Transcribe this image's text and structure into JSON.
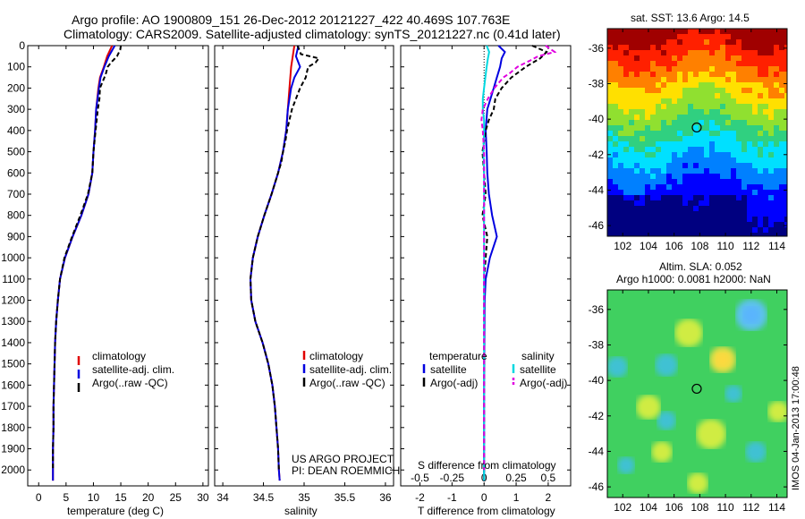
{
  "header": {
    "line1": "Argo profile: AO 1900809_151 26-Dec-2012 20121227_422 40.469S 107.763E",
    "line2": "Climatology: CARS2009. Satellite-adjusted climatology: synTS_20121227.nc (0.41d later)"
  },
  "side_stamp": "IMOS 04-Jan-2013 17:00:48",
  "colors": {
    "clim": "#e00000",
    "sat": "#0000e0",
    "argo": "#000000",
    "sat_s": "#00d8e0",
    "argo_s": "#e000e0"
  },
  "chart_data": [
    {
      "type": "line",
      "xlabel": "temperature (deg C)",
      "xticks": [
        "0",
        "5",
        "10",
        "15",
        "20",
        "25",
        "30"
      ],
      "xlim": [
        -2,
        31
      ],
      "ylim": [
        0,
        2075
      ],
      "yticks": [
        "0",
        "100",
        "200",
        "300",
        "400",
        "500",
        "600",
        "700",
        "800",
        "900",
        "1000",
        "1100",
        "1200",
        "1300",
        "1400",
        "1500",
        "1600",
        "1700",
        "1800",
        "1900",
        "2000"
      ],
      "legend": [
        "climatology",
        "satellite-adj. clim.",
        "Argo(..raw -QC)"
      ],
      "series": [
        {
          "name": "climatology",
          "depth": [
            0,
            50,
            100,
            150,
            200,
            300,
            400,
            500,
            600,
            700,
            800,
            900,
            1000,
            1100,
            1200,
            1300,
            1400,
            1500,
            1600,
            1700,
            1800,
            1900,
            2000,
            2050
          ],
          "values": [
            13.4,
            12.5,
            11.9,
            11.2,
            10.9,
            10.5,
            10.3,
            10.0,
            9.8,
            9.1,
            7.8,
            6.2,
            4.8,
            3.9,
            3.5,
            3.2,
            3.0,
            2.9,
            2.8,
            2.7,
            2.7,
            2.6,
            2.6,
            2.6
          ]
        },
        {
          "name": "satellite-adj. clim.",
          "depth": [
            0,
            50,
            100,
            150,
            200,
            300,
            400,
            500,
            600,
            700,
            800,
            900,
            1000,
            1100,
            1200,
            1300,
            1400,
            1500,
            1600,
            1700,
            1800,
            1900,
            2000,
            2050
          ],
          "values": [
            13.9,
            12.8,
            12.0,
            11.3,
            11.0,
            10.5,
            10.3,
            10.0,
            9.8,
            9.1,
            7.8,
            6.2,
            4.8,
            3.9,
            3.5,
            3.2,
            3.0,
            2.9,
            2.8,
            2.7,
            2.7,
            2.6,
            2.6,
            2.6
          ]
        },
        {
          "name": "Argo(..raw -QC)",
          "depth": [
            0,
            20,
            50,
            80,
            100,
            130,
            150,
            200,
            250,
            300,
            400,
            500,
            600,
            700,
            800,
            900,
            1000,
            1100,
            1200,
            1300,
            1400,
            1500,
            1600,
            1700,
            1800,
            1900,
            2000
          ],
          "values": [
            15.0,
            14.9,
            14.3,
            13.2,
            12.6,
            12.3,
            12.0,
            11.2,
            11.1,
            10.8,
            10.4,
            10.0,
            9.8,
            9.0,
            7.6,
            6.1,
            4.7,
            3.9,
            3.5,
            3.2,
            3.0,
            2.9,
            2.8,
            2.7,
            2.7,
            2.6,
            2.6
          ]
        }
      ]
    },
    {
      "type": "line",
      "xlabel": "salinity",
      "xticks": [
        "34",
        "34.5",
        "35",
        "35.5",
        "36"
      ],
      "xlim": [
        33.9,
        36.1
      ],
      "ylim": [
        0,
        2075
      ],
      "legend": [
        "climatology",
        "satellite-adj. clim.",
        "Argo(..raw -QC)"
      ],
      "annotation": [
        "US ARGO PROJECT",
        "PI: DEAN ROEMMICH"
      ],
      "series": [
        {
          "name": "climatology",
          "depth": [
            0,
            50,
            100,
            200,
            300,
            400,
            500,
            600,
            700,
            800,
            900,
            1000,
            1100,
            1200,
            1300,
            1400,
            1500,
            1600,
            1700,
            1800,
            1900,
            2000,
            2050
          ],
          "values": [
            34.88,
            34.86,
            34.84,
            34.82,
            34.8,
            34.78,
            34.74,
            34.68,
            34.6,
            34.51,
            34.43,
            34.37,
            34.34,
            34.35,
            34.4,
            34.49,
            34.56,
            34.61,
            34.64,
            34.66,
            34.68,
            34.69,
            34.7
          ]
        },
        {
          "name": "satellite-adj. clim.",
          "depth": [
            0,
            50,
            100,
            150,
            200,
            300,
            400,
            500,
            600,
            700,
            800,
            900,
            1000,
            1100,
            1200,
            1300,
            1400,
            1500,
            1600,
            1700,
            1800,
            1900,
            2000,
            2050
          ],
          "values": [
            34.93,
            34.9,
            34.95,
            34.88,
            34.84,
            34.8,
            34.78,
            34.74,
            34.68,
            34.6,
            34.51,
            34.43,
            34.37,
            34.34,
            34.35,
            34.4,
            34.49,
            34.56,
            34.61,
            34.64,
            34.66,
            34.68,
            34.69,
            34.7
          ]
        },
        {
          "name": "Argo(..raw -QC)",
          "depth": [
            0,
            40,
            60,
            80,
            100,
            150,
            200,
            250,
            300,
            350,
            400,
            450,
            500,
            550,
            600,
            700,
            800,
            900,
            1000,
            1100,
            1200,
            1300,
            1400,
            1500,
            1600,
            1700,
            1800,
            1900,
            2000
          ],
          "values": [
            34.92,
            34.96,
            35.18,
            35.14,
            35.05,
            35.02,
            34.95,
            34.9,
            34.85,
            34.82,
            34.79,
            34.77,
            34.74,
            34.72,
            34.68,
            34.6,
            34.51,
            34.43,
            34.37,
            34.34,
            34.35,
            34.4,
            34.49,
            34.56,
            34.61,
            34.64,
            34.66,
            34.68,
            34.69
          ]
        }
      ]
    },
    {
      "type": "line",
      "xlabel": "T difference from climatology",
      "xticks": [
        "-2",
        "-1",
        "0",
        "1",
        "2"
      ],
      "xlim": [
        -2.6,
        2.7
      ],
      "topxlabel": "S difference from climatology",
      "topxticks": [
        "-0.5",
        "-0.25",
        "0",
        "0.25",
        "0.5"
      ],
      "ylim": [
        0,
        2075
      ],
      "legend_titles": [
        "temperature",
        "salinity"
      ],
      "legend": [
        "satellite",
        "Argo(-adj)",
        "satellite",
        "Argo(-adj)"
      ],
      "series": [
        {
          "name": "satellite",
          "depth": [
            0,
            30,
            60,
            100,
            150,
            200,
            250,
            300,
            400,
            500,
            600,
            700,
            800,
            900,
            1000,
            1100,
            1200,
            1400,
            1600,
            1800,
            2000,
            2050
          ],
          "values": [
            0.45,
            0.65,
            0.55,
            0.5,
            0.4,
            0.3,
            0.2,
            0.1,
            0.05,
            0.08,
            0.1,
            0.15,
            0.25,
            0.4,
            0.18,
            0.05,
            0.02,
            0.01,
            0.0,
            0.0,
            0.0,
            0.0
          ]
        },
        {
          "name": "Argo(-adj)",
          "depth": [
            0,
            30,
            60,
            100,
            150,
            200,
            250,
            300,
            350,
            400,
            500,
            600,
            700,
            800,
            900,
            1000,
            1100,
            1200,
            1400,
            1600,
            1800,
            2000,
            2050
          ],
          "values": [
            1.5,
            1.95,
            1.75,
            1.3,
            0.85,
            0.55,
            0.35,
            0.3,
            0.15,
            0.05,
            -0.05,
            0.0,
            0.05,
            -0.05,
            0.1,
            0.05,
            0.0,
            0.0,
            0.0,
            0.0,
            0.0,
            0.0,
            0.0
          ]
        },
        {
          "name": "satellite",
          "depth": [
            0,
            30,
            60,
            100,
            150,
            200,
            250,
            300,
            350,
            400,
            500,
            600,
            700,
            800,
            900,
            1000,
            1200,
            1400,
            1600,
            1800,
            2000,
            2050
          ],
          "values": [
            0.02,
            0.04,
            0.03,
            0.02,
            0.01,
            0.0,
            -0.01,
            -0.01,
            0.0,
            0.0,
            -0.005,
            0.0,
            0.0,
            0.0,
            0.0,
            0.0,
            0.0,
            0.0,
            0.0,
            0.0,
            0.0,
            0.0
          ]
        },
        {
          "name": "Argo(-adj)",
          "depth": [
            0,
            30,
            50,
            70,
            100,
            130,
            150,
            200,
            250,
            300,
            350,
            400,
            500,
            600,
            800,
            1000,
            1200,
            1400,
            1600,
            1800,
            2000
          ],
          "values": [
            0.48,
            0.55,
            0.42,
            0.36,
            0.26,
            0.2,
            0.15,
            0.08,
            0.03,
            -0.01,
            -0.02,
            -0.01,
            0.0,
            0.0,
            0.0,
            0.0,
            0.0,
            0.0,
            0.0,
            0.0,
            0.0
          ]
        }
      ]
    },
    {
      "type": "heatmap",
      "title": "sat. SST: 13.6 Argo: 14.5",
      "xticks": [
        "102",
        "104",
        "106",
        "108",
        "110",
        "112",
        "114"
      ],
      "yticks": [
        "-36",
        "-38",
        "-40",
        "-42",
        "-44",
        "-46"
      ],
      "xlim": [
        100.8,
        114.8
      ],
      "ylim": [
        -46.6,
        -34.9
      ],
      "marker": {
        "lon": 107.763,
        "lat": -40.469
      }
    },
    {
      "type": "heatmap",
      "title": "Altim. SLA: 0.052",
      "subtitle": "Argo h1000: 0.0081 h2000: NaN",
      "xticks": [
        "102",
        "104",
        "106",
        "108",
        "110",
        "112",
        "114"
      ],
      "yticks": [
        "-36",
        "-38",
        "-40",
        "-42",
        "-44",
        "-46"
      ],
      "xlim": [
        100.8,
        114.8
      ],
      "ylim": [
        -46.6,
        -34.9
      ],
      "marker": {
        "lon": 107.763,
        "lat": -40.469
      }
    }
  ]
}
